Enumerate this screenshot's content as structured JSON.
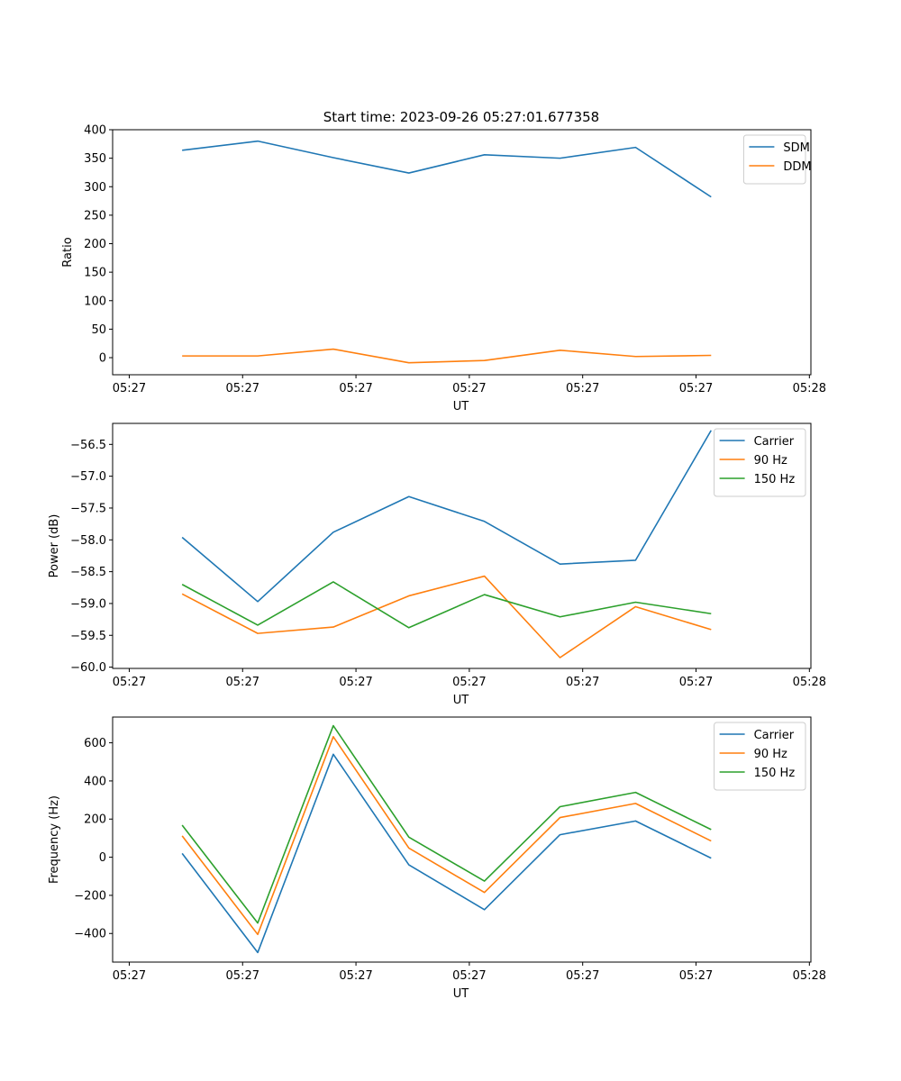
{
  "figure_title": "Start time: 2023-09-26 05:27:01.677358",
  "chart_data": [
    {
      "type": "line",
      "xlabel": "UT",
      "ylabel": "Ratio",
      "ylim": [
        -30,
        400
      ],
      "yticks": [
        0,
        50,
        100,
        150,
        200,
        250,
        300,
        350,
        400
      ],
      "ytick_labels": [
        "0",
        "50",
        "100",
        "150",
        "200",
        "250",
        "300",
        "350",
        "400"
      ],
      "xlim": [
        -0.22,
        9.02
      ],
      "xticks": [
        0,
        1.5,
        3,
        4.5,
        6,
        7.5,
        9
      ],
      "xtick_labels": [
        "05:27",
        "05:27",
        "05:27",
        "05:27",
        "05:27",
        "05:27",
        "05:28"
      ],
      "x": [
        0.7,
        1.7,
        2.7,
        3.7,
        4.7,
        5.7,
        6.7,
        7.7
      ],
      "legend_position": "top-right",
      "series": [
        {
          "name": "SDM",
          "color": "#1f77b4",
          "values": [
            364,
            380,
            351,
            324,
            356,
            350,
            369,
            282
          ]
        },
        {
          "name": "DDM",
          "color": "#ff7f0e",
          "values": [
            3,
            3,
            15,
            -9,
            -5,
            13,
            2,
            4
          ]
        }
      ]
    },
    {
      "type": "line",
      "xlabel": "UT",
      "ylabel": "Power (dB)",
      "ylim": [
        -60.02,
        -56.17
      ],
      "yticks": [
        -60.0,
        -59.5,
        -59.0,
        -58.5,
        -58.0,
        -57.5,
        -57.0,
        -56.5
      ],
      "ytick_labels": [
        "−60.0",
        "−59.5",
        "−59.0",
        "−58.5",
        "−58.0",
        "−57.5",
        "−57.0",
        "−56.5"
      ],
      "xlim": [
        -0.22,
        9.02
      ],
      "xticks": [
        0,
        1.5,
        3,
        4.5,
        6,
        7.5,
        9
      ],
      "xtick_labels": [
        "05:27",
        "05:27",
        "05:27",
        "05:27",
        "05:27",
        "05:27",
        "05:28"
      ],
      "x": [
        0.7,
        1.7,
        2.7,
        3.7,
        4.7,
        5.7,
        6.7,
        7.7
      ],
      "legend_position": "top-right",
      "series": [
        {
          "name": "Carrier",
          "color": "#1f77b4",
          "values": [
            -57.96,
            -58.97,
            -57.88,
            -57.32,
            -57.71,
            -58.38,
            -58.32,
            -56.28
          ]
        },
        {
          "name": "90 Hz",
          "color": "#ff7f0e",
          "values": [
            -58.85,
            -59.47,
            -59.37,
            -58.88,
            -58.57,
            -59.85,
            -59.05,
            -59.41
          ]
        },
        {
          "name": "150 Hz",
          "color": "#2ca02c",
          "values": [
            -58.7,
            -59.34,
            -58.66,
            -59.38,
            -58.86,
            -59.21,
            -58.98,
            -59.16
          ]
        }
      ]
    },
    {
      "type": "line",
      "xlabel": "UT",
      "ylabel": "Frequency (Hz)",
      "ylim": [
        -550,
        735
      ],
      "yticks": [
        -400,
        -200,
        0,
        200,
        400,
        600
      ],
      "ytick_labels": [
        "−400",
        "−200",
        "0",
        "200",
        "400",
        "600"
      ],
      "xlim": [
        -0.22,
        9.02
      ],
      "xticks": [
        0,
        1.5,
        3,
        4.5,
        6,
        7.5,
        9
      ],
      "xtick_labels": [
        "05:27",
        "05:27",
        "05:27",
        "05:27",
        "05:27",
        "05:27",
        "05:28"
      ],
      "x": [
        0.7,
        1.7,
        2.7,
        3.7,
        4.7,
        5.7,
        6.7,
        7.7
      ],
      "legend_position": "top-right",
      "series": [
        {
          "name": "Carrier",
          "color": "#1f77b4",
          "values": [
            20,
            -500,
            540,
            -40,
            -275,
            118,
            190,
            -5
          ]
        },
        {
          "name": "90 Hz",
          "color": "#ff7f0e",
          "values": [
            112,
            -405,
            632,
            48,
            -185,
            208,
            282,
            85
          ]
        },
        {
          "name": "150 Hz",
          "color": "#2ca02c",
          "values": [
            168,
            -345,
            690,
            105,
            -125,
            265,
            340,
            145
          ]
        }
      ]
    }
  ]
}
